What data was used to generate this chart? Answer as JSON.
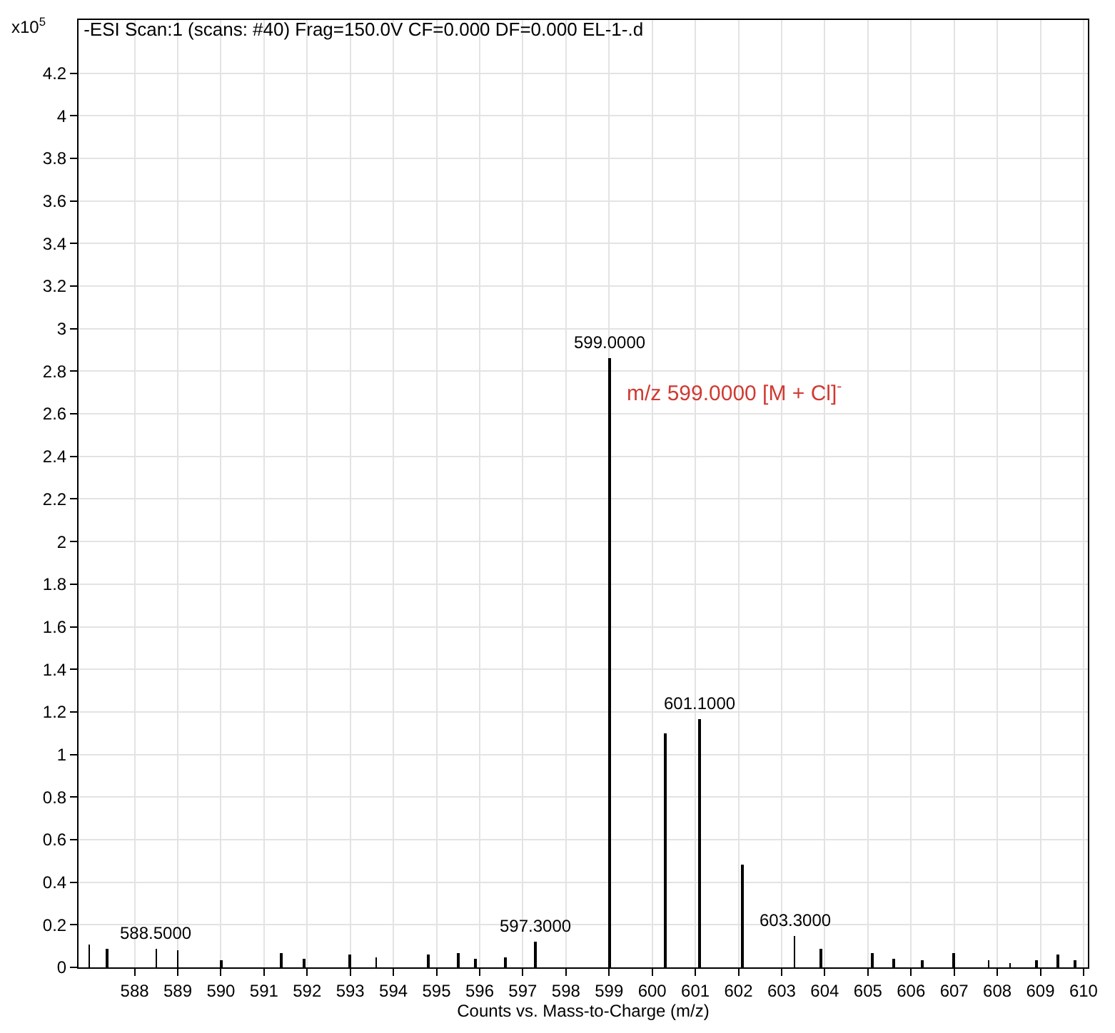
{
  "chart_data": {
    "type": "bar",
    "title": "-ESI Scan:1 (scans: #40) Frag=150.0V CF=0.000 DF=0.000 EL-1-.d",
    "xlabel": "Counts vs. Mass-to-Charge (m/z)",
    "ylabel": "x10$^{5}$",
    "x": [
      586.95,
      587.35,
      588.5,
      589.0,
      590.0,
      591.4,
      591.93,
      593.0,
      593.6,
      594.8,
      595.5,
      595.9,
      596.6,
      597.3,
      599.0,
      600.3,
      601.1,
      602.1,
      603.3,
      603.9,
      605.1,
      605.6,
      606.25,
      607.0,
      607.8,
      608.3,
      608.9,
      609.4,
      609.8
    ],
    "values": [
      0.11,
      0.09,
      0.09,
      0.08,
      0.035,
      0.07,
      0.04,
      0.057,
      0.045,
      0.057,
      0.064,
      0.04,
      0.05,
      0.12,
      2.86,
      1.1,
      1.165,
      0.48,
      0.145,
      0.088,
      0.07,
      0.04,
      0.033,
      0.064,
      0.035,
      0.02,
      0.035,
      0.06,
      0.033
    ],
    "color": "#000000",
    "xlim": [
      586.7,
      610.1
    ],
    "xticks": [
      588,
      589,
      590,
      591,
      592,
      593,
      594,
      595,
      596,
      597,
      598,
      599,
      600,
      601,
      602,
      603,
      604,
      605,
      606,
      607,
      608,
      609,
      610
    ],
    "ylim": [
      0,
      4.45
    ],
    "yticks": [
      0,
      0.2,
      0.4,
      0.6,
      0.8,
      1,
      1.2,
      1.4,
      1.6,
      1.8,
      2,
      2.2,
      2.4,
      2.6,
      2.8,
      3,
      3.2,
      3.4,
      3.6,
      3.8,
      4,
      4.2
    ],
    "grid": true,
    "annotations": [
      {
        "text": "588.5000",
        "x": 588.5,
        "y": 0.09
      },
      {
        "text": "597.3000",
        "x": 597.3,
        "y": 0.12
      },
      {
        "text": "599.0000",
        "x": 599.0,
        "y": 2.86
      },
      {
        "text": "601.1000",
        "x": 601.1,
        "y": 1.165
      },
      {
        "text": "603.3000",
        "x": 603.3,
        "y": 0.145
      },
      {
        "text": "m/z 599.0000 [M + Cl]$^{-}$",
        "x": 599.0,
        "y": 2.86
      }
    ]
  }
}
